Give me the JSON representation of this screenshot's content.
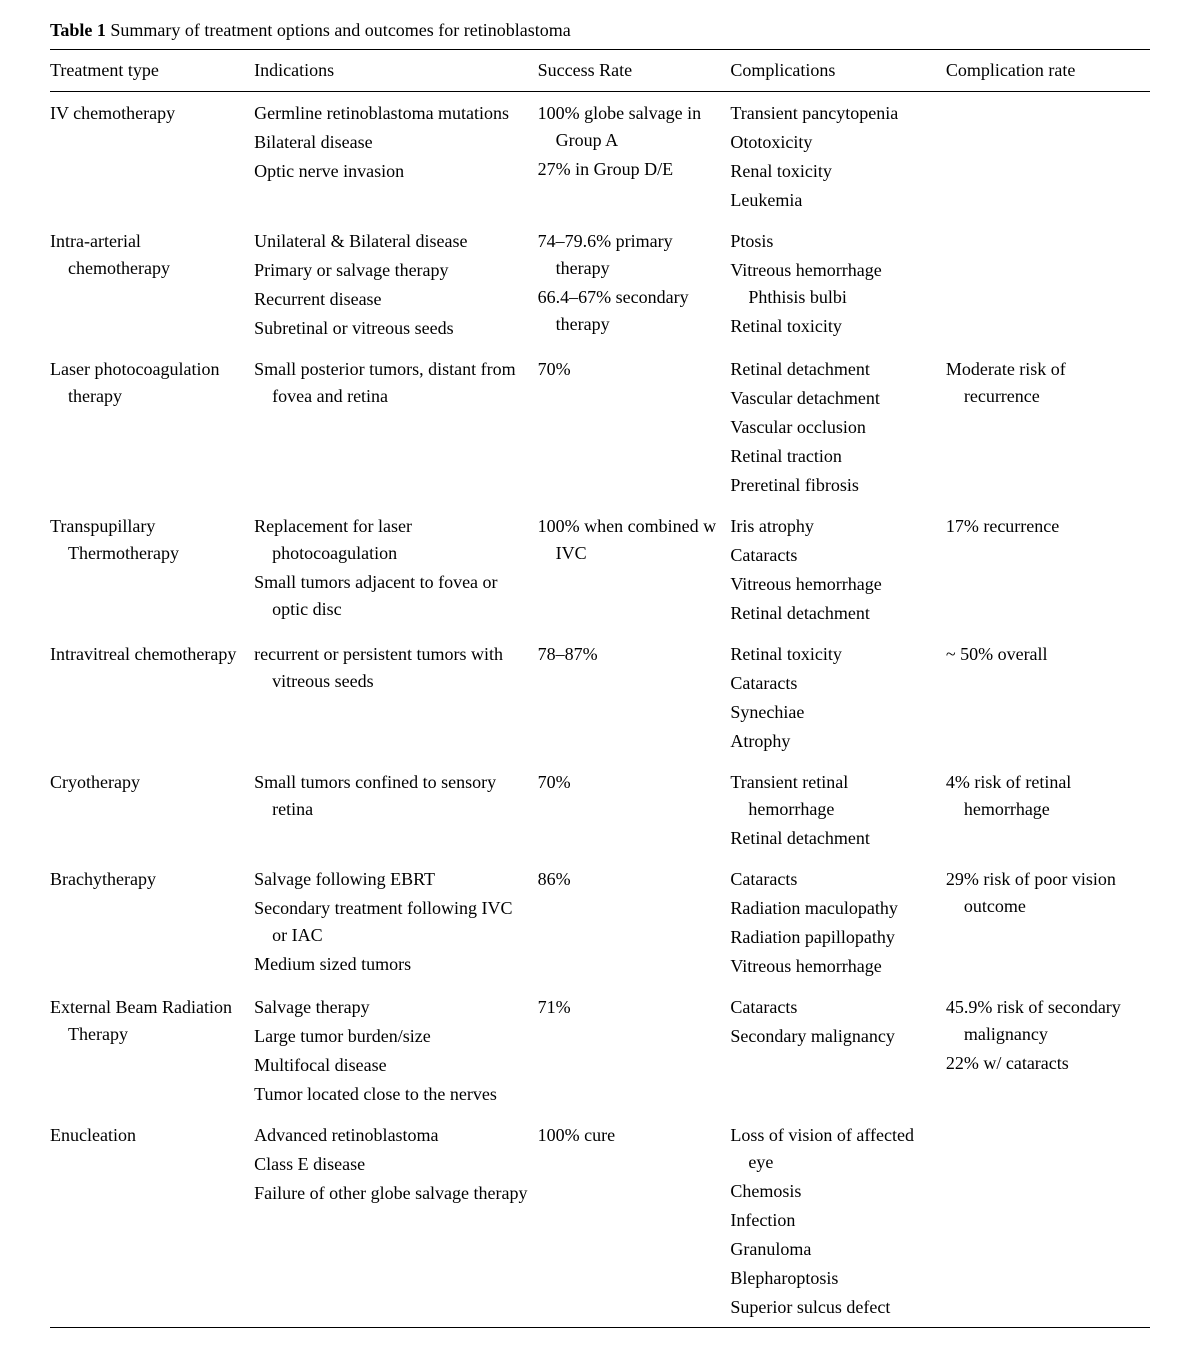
{
  "table": {
    "label": "Table 1",
    "caption": "Summary of treatment options and outcomes for retinoblastoma",
    "columns": [
      "Treatment type",
      "Indications",
      "Success Rate",
      "Complications",
      "Complication rate"
    ],
    "rows": [
      {
        "treatment": "IV chemotherapy",
        "indications": [
          "Germline retinoblastoma mutations",
          "Bilateral disease",
          "Optic nerve invasion"
        ],
        "success": [
          "100% globe salvage in Group A",
          "27% in Group D/E"
        ],
        "complications": [
          "Transient pancytopenia",
          "Ototoxicity",
          "Renal toxicity",
          "Leukemia"
        ],
        "compRate": [
          ""
        ]
      },
      {
        "treatment": "Intra-arterial chemotherapy",
        "indications": [
          "Unilateral & Bilateral disease",
          "Primary or salvage therapy",
          "Recurrent disease",
          "Subretinal or vitreous seeds"
        ],
        "success": [
          "74–79.6% primary therapy",
          "66.4–67% secondary therapy"
        ],
        "complications": [
          "Ptosis",
          "Vitreous hemorrhage Phthisis bulbi",
          "Retinal toxicity"
        ],
        "compRate": [
          ""
        ]
      },
      {
        "treatment": "Laser photocoagulation therapy",
        "indications": [
          "Small posterior tumors, distant from fovea and retina"
        ],
        "success": [
          "70%"
        ],
        "complications": [
          "Retinal detachment",
          "Vascular detachment",
          "Vascular occlusion",
          "Retinal traction",
          "Preretinal fibrosis"
        ],
        "compRate": [
          "Moderate risk of recurrence"
        ]
      },
      {
        "treatment": "Transpupillary Thermotherapy",
        "indications": [
          "Replacement for laser photocoagulation",
          "Small tumors adjacent to fovea or optic disc"
        ],
        "success": [
          "100% when combined w IVC"
        ],
        "complications": [
          "Iris atrophy",
          "Cataracts",
          "Vitreous hemorrhage",
          "Retinal detachment"
        ],
        "compRate": [
          "17% recurrence"
        ]
      },
      {
        "treatment": "Intravitreal chemotherapy",
        "indications": [
          "recurrent or persistent tumors with vitreous seeds"
        ],
        "success": [
          "78–87%"
        ],
        "complications": [
          "Retinal toxicity",
          "Cataracts",
          "Synechiae",
          "Atrophy"
        ],
        "compRate": [
          "~ 50% overall"
        ]
      },
      {
        "treatment": "Cryotherapy",
        "indications": [
          "Small tumors confined to sensory retina"
        ],
        "success": [
          "70%"
        ],
        "complications": [
          "Transient retinal hemorrhage",
          "Retinal detachment"
        ],
        "compRate": [
          "4% risk of retinal hemorrhage"
        ]
      },
      {
        "treatment": "Brachytherapy",
        "indications": [
          "Salvage following EBRT",
          "Secondary treatment following IVC or IAC",
          "Medium sized tumors"
        ],
        "success": [
          "86%"
        ],
        "complications": [
          "Cataracts",
          "Radiation maculopathy",
          "Radiation papillopathy",
          "Vitreous hemorrhage"
        ],
        "compRate": [
          "29% risk of poor vision outcome"
        ]
      },
      {
        "treatment": "External Beam Radiation Therapy",
        "indications": [
          "Salvage therapy",
          "Large tumor burden/size",
          "Multifocal disease",
          "Tumor located close to the nerves"
        ],
        "success": [
          "71%"
        ],
        "complications": [
          "Cataracts",
          "Secondary malignancy"
        ],
        "compRate": [
          "45.9% risk of secondary malignancy",
          "22% w/ cataracts"
        ]
      },
      {
        "treatment": "Enucleation",
        "indications": [
          "Advanced retinoblastoma",
          "Class E disease",
          "Failure of other globe salvage therapy"
        ],
        "success": [
          "100% cure"
        ],
        "complications": [
          "Loss of vision of affected eye",
          "Chemosis",
          "Infection",
          "Granuloma",
          "Blepharoptosis",
          "Superior sulcus defect"
        ],
        "compRate": [
          ""
        ]
      }
    ]
  }
}
